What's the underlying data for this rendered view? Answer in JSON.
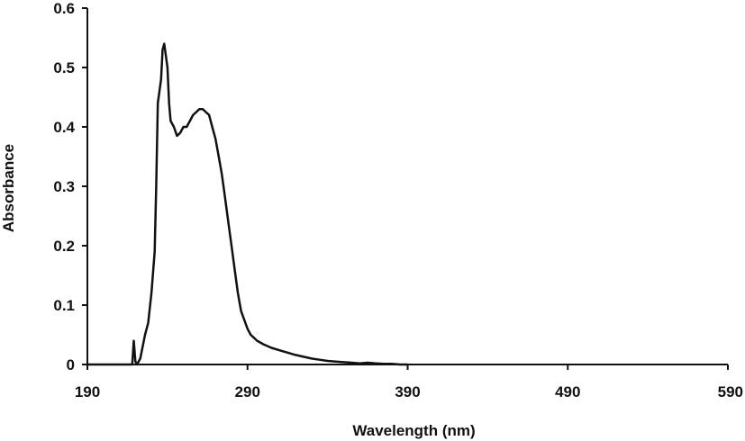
{
  "chart_data": {
    "type": "line",
    "title": "",
    "xlabel": "Wavelength (nm)",
    "ylabel": "Absorbance",
    "xlim": [
      190,
      590
    ],
    "ylim": [
      0,
      0.6
    ],
    "x_ticks": [
      "190",
      "290",
      "390",
      "490",
      "590"
    ],
    "y_ticks": [
      "0",
      "0.1",
      "0.2",
      "0.3",
      "0.4",
      "0.5",
      "0.6"
    ],
    "grid": false,
    "legend": "none",
    "line_color": "#111111",
    "series": [
      {
        "x": [
          190,
          218,
          219,
          220,
          221,
          223,
          226,
          228,
          230,
          232,
          233,
          234,
          236,
          237,
          238,
          240,
          241,
          242,
          244,
          246,
          248,
          250,
          252,
          254,
          256,
          258,
          260,
          262,
          264,
          266,
          268,
          270,
          272,
          274,
          276,
          278,
          280,
          282,
          284,
          286,
          288,
          290,
          292,
          294,
          296,
          300,
          305,
          310,
          315,
          320,
          325,
          330,
          335,
          340,
          345,
          350,
          355,
          360,
          365,
          370,
          375,
          380,
          385,
          390
        ],
        "y": [
          0,
          0,
          0.04,
          0.005,
          0.0,
          0.01,
          0.05,
          0.07,
          0.12,
          0.19,
          0.3,
          0.44,
          0.48,
          0.53,
          0.54,
          0.5,
          0.44,
          0.41,
          0.4,
          0.385,
          0.39,
          0.4,
          0.4,
          0.41,
          0.42,
          0.425,
          0.43,
          0.43,
          0.425,
          0.42,
          0.4,
          0.38,
          0.35,
          0.32,
          0.28,
          0.24,
          0.2,
          0.16,
          0.12,
          0.09,
          0.075,
          0.06,
          0.05,
          0.045,
          0.04,
          0.034,
          0.028,
          0.024,
          0.02,
          0.016,
          0.013,
          0.01,
          0.008,
          0.006,
          0.005,
          0.004,
          0.003,
          0.002,
          0.003,
          0.002,
          0.001,
          0.001,
          0.0,
          0.0
        ]
      }
    ]
  }
}
